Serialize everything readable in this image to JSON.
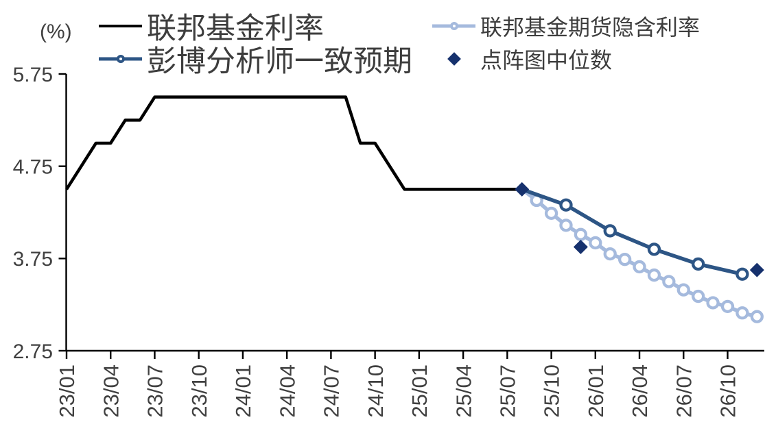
{
  "unit_label": "(%)",
  "colors": {
    "fed_funds": "#000000",
    "consensus": "#2d5585",
    "futures": "#a5badd",
    "dot_median": "#16316d",
    "axis": "#000000",
    "tick_text": "#404040",
    "legend_text": "#3d3d3d",
    "marker_fill": "#ffffff"
  },
  "legend": {
    "fed_funds_label": "联邦基金利率",
    "consensus_label": "彭博分析师一致预期",
    "futures_label": "联邦基金期货隐含利率",
    "dot_median_label": "点阵图中位数"
  },
  "chart_data": {
    "type": "line",
    "title": "",
    "ylabel": "(%)",
    "ylim": [
      2.75,
      5.75
    ],
    "grid": false,
    "legend_position": "top",
    "x_tick_rotation": -90,
    "y_ticks": [
      {
        "label": "5.75",
        "value": 5.75
      },
      {
        "label": "4.75",
        "value": 4.75
      },
      {
        "label": "3.75",
        "value": 3.75
      },
      {
        "label": "2.75",
        "value": 2.75
      }
    ],
    "x_ticks": [
      "23/01",
      "23/04",
      "23/07",
      "23/10",
      "24/01",
      "24/04",
      "24/07",
      "24/10",
      "25/01",
      "25/04",
      "25/07",
      "25/10",
      "26/01",
      "26/04",
      "26/07",
      "26/10"
    ],
    "series": [
      {
        "name": "联邦基金利率",
        "id": "fed-funds-line",
        "color_key": "fed_funds",
        "marker": "none",
        "line_width": 4.5,
        "points": [
          [
            "23/01",
            4.5
          ],
          [
            "23/02",
            4.75
          ],
          [
            "23/03",
            5.0
          ],
          [
            "23/04",
            5.0
          ],
          [
            "23/05",
            5.25
          ],
          [
            "23/06",
            5.25
          ],
          [
            "23/07",
            5.5
          ],
          [
            "23/08",
            5.5
          ],
          [
            "23/09",
            5.5
          ],
          [
            "23/10",
            5.5
          ],
          [
            "23/11",
            5.5
          ],
          [
            "23/12",
            5.5
          ],
          [
            "24/01",
            5.5
          ],
          [
            "24/02",
            5.5
          ],
          [
            "24/03",
            5.5
          ],
          [
            "24/04",
            5.5
          ],
          [
            "24/05",
            5.5
          ],
          [
            "24/06",
            5.5
          ],
          [
            "24/07",
            5.5
          ],
          [
            "24/08",
            5.5
          ],
          [
            "24/09",
            5.0
          ],
          [
            "24/10",
            5.0
          ],
          [
            "24/11",
            4.75
          ],
          [
            "24/12",
            4.5
          ],
          [
            "25/01",
            4.5
          ],
          [
            "25/02",
            4.5
          ],
          [
            "25/03",
            4.5
          ],
          [
            "25/04",
            4.5
          ],
          [
            "25/05",
            4.5
          ],
          [
            "25/06",
            4.5
          ],
          [
            "25/07",
            4.5
          ],
          [
            "25/08",
            4.5
          ]
        ]
      },
      {
        "name": "联邦基金期货隐含利率",
        "id": "futures-implied-line",
        "color_key": "futures",
        "marker": "circle",
        "skip_first_marker": true,
        "line_width": 5.5,
        "points": [
          [
            "25/08",
            4.5
          ],
          [
            "25/09",
            4.38
          ],
          [
            "25/10",
            4.24
          ],
          [
            "25/11",
            4.11
          ],
          [
            "25/12",
            4.01
          ],
          [
            "26/01",
            3.92
          ],
          [
            "26/02",
            3.8
          ],
          [
            "26/03",
            3.74
          ],
          [
            "26/04",
            3.66
          ],
          [
            "26/05",
            3.57
          ],
          [
            "26/06",
            3.5
          ],
          [
            "26/07",
            3.41
          ],
          [
            "26/08",
            3.34
          ],
          [
            "26/09",
            3.27
          ],
          [
            "26/10",
            3.23
          ],
          [
            "26/11",
            3.16
          ],
          [
            "26/12",
            3.12
          ]
        ]
      },
      {
        "name": "彭博分析师一致预期",
        "id": "consensus-line",
        "color_key": "consensus",
        "marker": "circle",
        "skip_first_marker": true,
        "line_width": 5.5,
        "points": [
          [
            "25/08",
            4.5
          ],
          [
            "25/11",
            4.33
          ],
          [
            "26/02",
            4.05
          ],
          [
            "26/05",
            3.85
          ],
          [
            "26/08",
            3.69
          ],
          [
            "26/11",
            3.58
          ]
        ]
      },
      {
        "name": "点阵图中位数",
        "id": "dot-plot-median",
        "color_key": "dot_median",
        "marker": "diamond",
        "line_width": 0,
        "points": [
          [
            "25/08",
            4.5
          ],
          [
            "25/12",
            3.875
          ],
          [
            "26/12",
            3.625
          ]
        ]
      }
    ]
  }
}
